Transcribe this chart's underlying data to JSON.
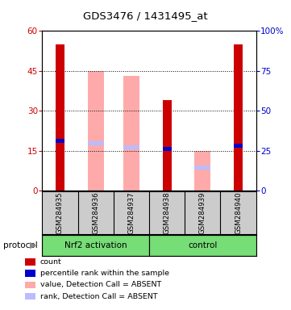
{
  "title": "GDS3476 / 1431495_at",
  "samples": [
    "GSM284935",
    "GSM284936",
    "GSM284937",
    "GSM284938",
    "GSM284939",
    "GSM284940"
  ],
  "ylim_left": [
    0,
    60
  ],
  "ylim_right": [
    0,
    100
  ],
  "yticks_left": [
    0,
    15,
    30,
    45,
    60
  ],
  "yticks_right": [
    0,
    25,
    50,
    75,
    100
  ],
  "ytick_labels_right": [
    "0",
    "25",
    "50",
    "75",
    "100%"
  ],
  "red_bars": [
    55,
    0,
    0,
    34,
    0,
    55
  ],
  "blue_bottoms": [
    18,
    0,
    0,
    15,
    0,
    16
  ],
  "blue_heights": [
    1.5,
    0,
    0,
    1.5,
    0,
    1.5
  ],
  "pink_bars": [
    0,
    45,
    43,
    0,
    15,
    0
  ],
  "lightblue_bottoms": [
    0,
    17,
    15.5,
    0,
    8,
    0
  ],
  "lightblue_heights": [
    0,
    1.5,
    1.5,
    0,
    1.5,
    0
  ],
  "red_color": "#cc0000",
  "blue_color": "#0000cc",
  "pink_color": "#ffaaaa",
  "lightblue_color": "#bbbbff",
  "red_bar_width": 0.25,
  "pink_bar_width": 0.45,
  "legend_items": [
    {
      "color": "#cc0000",
      "label": "count"
    },
    {
      "color": "#0000cc",
      "label": "percentile rank within the sample"
    },
    {
      "color": "#ffaaaa",
      "label": "value, Detection Call = ABSENT"
    },
    {
      "color": "#bbbbff",
      "label": "rank, Detection Call = ABSENT"
    }
  ],
  "protocol_label": "protocol",
  "group1_label": "Nrf2 activation",
  "group2_label": "control",
  "group_color": "#77dd77",
  "sample_box_color": "#cccccc",
  "background_color": "#ffffff"
}
